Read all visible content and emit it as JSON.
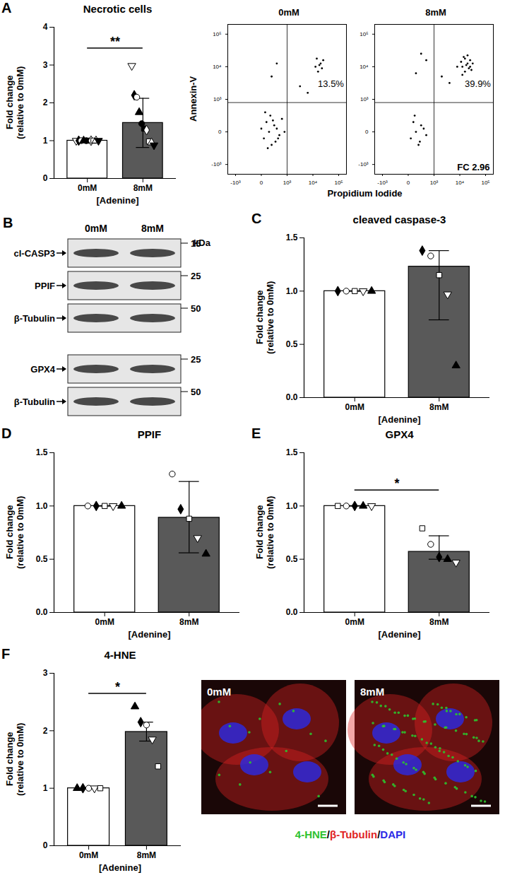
{
  "chart_data": [
    {
      "type": "bar",
      "panel": "A",
      "title": "Necrotic cells",
      "ylabel": "Fold change\n(relative to 0mM)",
      "xlabel": "[Adenine]",
      "categories": [
        "0mM",
        "8mM"
      ],
      "values": [
        1.0,
        1.47
      ],
      "error_low": [
        0.97,
        0.82
      ],
      "error_high": [
        1.03,
        2.12
      ],
      "colors": [
        "#ffffff",
        "#595959"
      ],
      "ylim": [
        0,
        4
      ],
      "yticks": [
        0,
        1,
        2,
        3,
        4
      ],
      "significance": {
        "label": "**",
        "y": 3.45
      },
      "replicates": [
        {
          "marker": "triangle-down-open",
          "values": [
            1.0,
            2.98
          ]
        },
        {
          "marker": "diamond",
          "values": [
            1.0,
            2.2
          ]
        },
        {
          "marker": "circle-open",
          "values": [
            1.0,
            2.15
          ]
        },
        {
          "marker": "triangle",
          "values": [
            1.0,
            1.75
          ]
        },
        {
          "marker": "circle",
          "values": [
            1.0,
            1.45
          ]
        },
        {
          "marker": "square",
          "values": [
            1.0,
            1.32
          ]
        },
        {
          "marker": "diamond-open",
          "values": [
            1.0,
            1.28
          ]
        },
        {
          "marker": "square-open",
          "values": [
            1.0,
            0.98
          ]
        },
        {
          "marker": "triangle-open",
          "values": [
            1.0,
            0.95
          ]
        },
        {
          "marker": "triangle-down",
          "values": [
            1.0,
            0.88
          ]
        }
      ]
    },
    {
      "type": "flow",
      "xlabel": "Propidium Iodide",
      "ylabel": "Annexin-V",
      "xlim": [
        -1.3,
        3.3
      ],
      "ylim": [
        -1.3,
        3.3
      ],
      "xticks": [
        {
          "value": -1,
          "label": "-10³"
        },
        {
          "value": 0,
          "label": "0"
        },
        {
          "value": 1,
          "label": "10³"
        },
        {
          "value": 2,
          "label": "10⁴"
        },
        {
          "value": 3,
          "label": "10⁵"
        }
      ],
      "yticks": [
        {
          "value": -1,
          "label": "-10³"
        },
        {
          "value": 0,
          "label": "0"
        },
        {
          "value": 1,
          "label": "10³"
        },
        {
          "value": 2,
          "label": "10⁴"
        },
        {
          "value": 3,
          "label": "10⁵"
        }
      ],
      "gates": {
        "x": 1.0,
        "y": 0.9
      },
      "panels": [
        {
          "title": "0mM",
          "quadrant_label": "13.5%",
          "x": [
            0.1,
            0.3,
            0.5,
            0.7,
            0.2,
            0.4,
            0.6,
            0.8,
            0.0,
            0.35,
            0.55,
            0.25,
            0.45,
            0.65,
            0.15,
            0.9,
            2.1,
            2.3,
            2.2,
            2.4,
            2.15,
            2.35,
            2.25,
            0.4,
            0.6,
            1.5,
            1.8
          ],
          "y": [
            -0.2,
            0.0,
            0.2,
            -0.1,
            0.3,
            -0.4,
            0.1,
            0.4,
            0.1,
            0.5,
            -0.3,
            -0.5,
            0.35,
            -0.2,
            0.6,
            0.0,
            2.0,
            2.1,
            1.85,
            2.2,
            2.25,
            1.95,
            2.05,
            1.7,
            2.1,
            1.4,
            1.2
          ]
        },
        {
          "title": "8mM",
          "quadrant_label": "39.9%",
          "fold_change_label": "FC 2.96",
          "x": [
            0.1,
            0.3,
            0.5,
            0.7,
            0.2,
            0.4,
            0.6,
            0.25,
            0.45,
            2.1,
            2.3,
            2.2,
            2.4,
            2.15,
            2.35,
            2.25,
            2.05,
            2.45,
            2.3,
            2.2,
            2.4,
            2.1,
            2.5,
            0.3,
            0.7,
            0.5,
            1.6,
            1.9,
            1.3
          ],
          "y": [
            -0.2,
            0.0,
            0.2,
            -0.1,
            0.3,
            -0.4,
            0.1,
            0.5,
            -0.3,
            2.0,
            2.1,
            1.85,
            2.2,
            2.3,
            1.95,
            2.05,
            2.15,
            1.9,
            2.35,
            2.25,
            2.0,
            1.75,
            2.1,
            1.8,
            2.2,
            2.4,
            1.5,
            2.0,
            1.7
          ]
        }
      ]
    },
    {
      "type": "bar",
      "panel": "C",
      "title": "cleaved caspase-3",
      "ylabel": "Fold change\n(relative to 0mM)",
      "xlabel": "[Adenine]",
      "categories": [
        "0mM",
        "8mM"
      ],
      "values": [
        1.0,
        1.23
      ],
      "error_low": [
        1.0,
        0.73
      ],
      "error_high": [
        1.0,
        1.38
      ],
      "colors": [
        "#ffffff",
        "#595959"
      ],
      "ylim": [
        0,
        1.5
      ],
      "yticks": [
        {
          "value": 0,
          "label": "0.0"
        },
        {
          "value": 0.5,
          "label": "0.5"
        },
        {
          "value": 1,
          "label": "1.0"
        },
        {
          "value": 1.5,
          "label": "1.5"
        }
      ],
      "replicates": [
        {
          "marker": "diamond",
          "values": [
            1.0,
            1.38
          ]
        },
        {
          "marker": "circle-open",
          "values": [
            1.0,
            1.33
          ]
        },
        {
          "marker": "square-open",
          "values": [
            1.0,
            1.15
          ]
        },
        {
          "marker": "triangle-down-open",
          "values": [
            1.0,
            0.97
          ]
        },
        {
          "marker": "triangle",
          "values": [
            1.0,
            0.3
          ]
        }
      ]
    },
    {
      "type": "bar",
      "panel": "D",
      "title": "PPIF",
      "ylabel": "Fold change\n(relative to 0mM)",
      "xlabel": "[Adenine]",
      "categories": [
        "0mM",
        "8mM"
      ],
      "values": [
        1.0,
        0.89
      ],
      "error_low": [
        1.0,
        0.56
      ],
      "error_high": [
        1.0,
        1.23
      ],
      "colors": [
        "#ffffff",
        "#595959"
      ],
      "ylim": [
        0,
        1.5
      ],
      "yticks": [
        {
          "value": 0,
          "label": "0.0"
        },
        {
          "value": 0.5,
          "label": "0.5"
        },
        {
          "value": 1,
          "label": "1.0"
        },
        {
          "value": 1.5,
          "label": "1.5"
        }
      ],
      "replicates": [
        {
          "marker": "circle-open",
          "values": [
            1.0,
            1.3
          ]
        },
        {
          "marker": "diamond",
          "values": [
            1.0,
            0.97
          ]
        },
        {
          "marker": "square-open",
          "values": [
            1.0,
            0.88
          ]
        },
        {
          "marker": "triangle-down-open",
          "values": [
            1.0,
            0.7
          ]
        },
        {
          "marker": "triangle",
          "values": [
            1.0,
            0.55
          ]
        }
      ]
    },
    {
      "type": "bar",
      "panel": "E",
      "title": "GPX4",
      "ylabel": "Fold change\n(relative to 0mM)",
      "xlabel": "[Adenine]",
      "categories": [
        "0mM",
        "8mM"
      ],
      "values": [
        1.0,
        0.57
      ],
      "error_low": [
        1.0,
        0.5
      ],
      "error_high": [
        1.0,
        0.72
      ],
      "colors": [
        "#ffffff",
        "#595959"
      ],
      "ylim": [
        0,
        1.5
      ],
      "yticks": [
        {
          "value": 0,
          "label": "0.0"
        },
        {
          "value": 0.5,
          "label": "0.5"
        },
        {
          "value": 1,
          "label": "1.0"
        },
        {
          "value": 1.5,
          "label": "1.5"
        }
      ],
      "significance": {
        "label": "*",
        "y": 1.15
      },
      "replicates": [
        {
          "marker": "square-open",
          "values": [
            1.0,
            0.79
          ]
        },
        {
          "marker": "circle-open",
          "values": [
            1.0,
            0.64
          ]
        },
        {
          "marker": "diamond",
          "values": [
            1.0,
            0.52
          ]
        },
        {
          "marker": "triangle",
          "values": [
            1.0,
            0.5
          ]
        },
        {
          "marker": "triangle-down-open",
          "values": [
            1.0,
            0.47
          ]
        }
      ]
    },
    {
      "type": "bar",
      "panel": "F",
      "title": "4-HNE",
      "ylabel": "Fold change\n(relative to 0mM)",
      "xlabel": "[Adenine]",
      "categories": [
        "0mM",
        "8mM"
      ],
      "values": [
        1.0,
        1.98
      ],
      "error_low": [
        1.0,
        1.82
      ],
      "error_high": [
        1.0,
        2.15
      ],
      "colors": [
        "#ffffff",
        "#595959"
      ],
      "ylim": [
        0,
        3
      ],
      "yticks": [
        0,
        1,
        2,
        3
      ],
      "significance": {
        "label": "*",
        "y": 2.65
      },
      "replicates": [
        {
          "marker": "triangle",
          "values": [
            1.0,
            2.42
          ]
        },
        {
          "marker": "diamond",
          "values": [
            1.0,
            2.15
          ]
        },
        {
          "marker": "circle-open",
          "values": [
            1.0,
            2.1
          ]
        },
        {
          "marker": "triangle-down-open",
          "values": [
            1.0,
            1.85
          ]
        },
        {
          "marker": "square-open",
          "values": [
            1.0,
            1.38
          ]
        }
      ]
    }
  ],
  "blot": {
    "panel": "B",
    "lanes": [
      "0mM",
      "8mM"
    ],
    "kda_label": "kDa",
    "groups": [
      [
        {
          "label": "cl-CASP3",
          "kda": 15
        },
        {
          "label": "PPIF",
          "kda": 25
        },
        {
          "label": "β-Tubulin",
          "kda": 50
        }
      ],
      [
        {
          "label": "GPX4",
          "kda": 25
        },
        {
          "label": "β-Tubulin",
          "kda": 50
        }
      ]
    ]
  },
  "micrographs": {
    "labels": [
      "0mM",
      "8mM"
    ],
    "separator": "/",
    "stains": [
      {
        "name": "4-HNE",
        "color": "#2ec22e"
      },
      {
        "name": "β-Tubulin",
        "color": "#e02424"
      },
      {
        "name": "DAPI",
        "color": "#2a2ae6"
      }
    ]
  }
}
